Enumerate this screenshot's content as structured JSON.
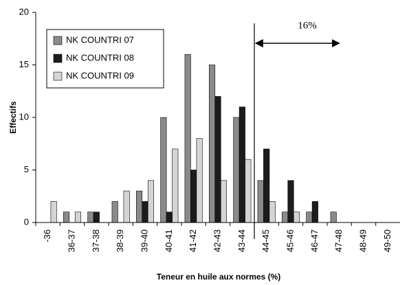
{
  "chart_data": {
    "type": "bar",
    "xlabel": "Teneur en huile aux normes (%)",
    "ylabel": "Effectifs",
    "annotation": "16%",
    "categories": [
      "-36",
      "36-37",
      "37-38",
      "38-39",
      "39-40",
      "40-41",
      "41-42",
      "42-43",
      "43-44",
      "44-45",
      "45-46",
      "46-47",
      "47-48",
      "48-49",
      "49-50"
    ],
    "series": [
      {
        "name": "NK COUNTRI 07",
        "color": "#8a8a8a",
        "values": [
          0,
          1,
          1,
          2,
          3,
          10,
          16,
          15,
          10,
          4,
          1,
          1,
          1,
          0,
          0
        ]
      },
      {
        "name": "NK COUNTRI 08",
        "color": "#1c1c1c",
        "values": [
          0,
          0,
          1,
          0,
          2,
          1,
          5,
          12,
          11,
          7,
          4,
          2,
          0,
          0,
          0
        ]
      },
      {
        "name": "NK COUNTRI 09",
        "color": "#d4d4d4",
        "values": [
          2,
          1,
          0,
          3,
          4,
          7,
          8,
          4,
          6,
          2,
          1,
          0,
          0,
          0,
          0
        ]
      }
    ],
    "ylim": [
      0,
      20
    ],
    "yticks": [
      0,
      5,
      10,
      15,
      20
    ],
    "grid": false,
    "legend": "upper left"
  }
}
